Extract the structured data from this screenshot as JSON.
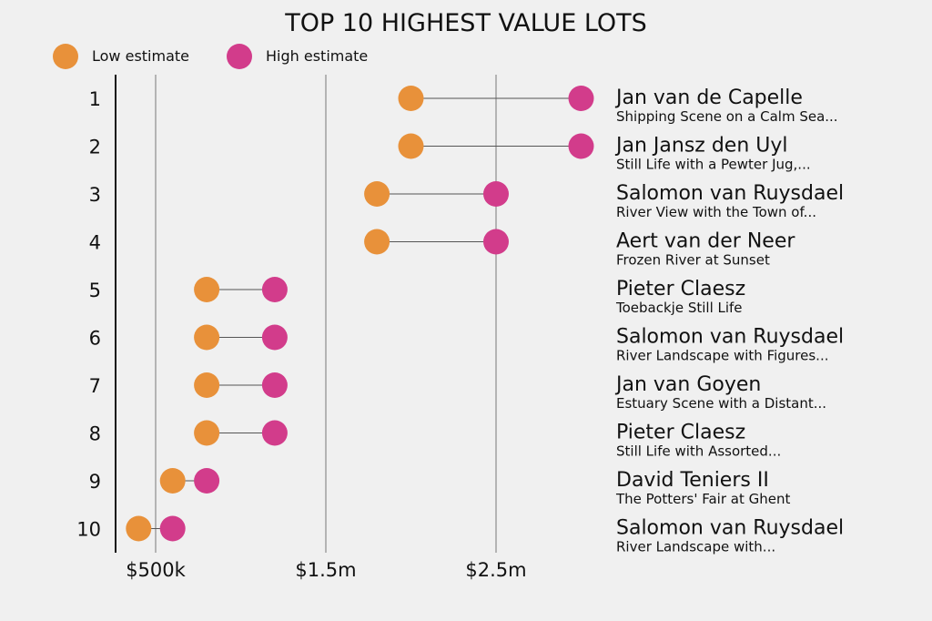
{
  "chart_data": {
    "type": "dumbbell",
    "title": "TOP 10 HIGHEST VALUE LOTS",
    "legend": [
      {
        "name": "Low estimate",
        "color": "#e8913a"
      },
      {
        "name": "High estimate",
        "color": "#d23c8b"
      }
    ],
    "x_ticks": [
      {
        "value": 500000,
        "label": "$500k"
      },
      {
        "value": 1500000,
        "label": "$1.5m"
      },
      {
        "value": 2500000,
        "label": "$2.5m"
      }
    ],
    "xlim": [
      270000,
      3100000
    ],
    "grid": "vertical",
    "rows": [
      {
        "rank": "1",
        "artist": "Jan van de Capelle",
        "title": "Shipping Scene on a Calm Sea...",
        "low": 2000000,
        "high": 3000000
      },
      {
        "rank": "2",
        "artist": "Jan Jansz den Uyl",
        "title": "Still Life with a Pewter Jug,...",
        "low": 2000000,
        "high": 3000000
      },
      {
        "rank": "3",
        "artist": "Salomon van Ruysdael",
        "title": "River View with the Town of...",
        "low": 1800000,
        "high": 2500000
      },
      {
        "rank": "4",
        "artist": "Aert van der Neer",
        "title": "Frozen River at Sunset",
        "low": 1800000,
        "high": 2500000
      },
      {
        "rank": "5",
        "artist": "Pieter Claesz",
        "title": "Toebackje Still Life",
        "low": 800000,
        "high": 1200000
      },
      {
        "rank": "6",
        "artist": "Salomon van Ruysdael",
        "title": "River Landscape with Figures...",
        "low": 800000,
        "high": 1200000
      },
      {
        "rank": "7",
        "artist": "Jan van Goyen",
        "title": "Estuary Scene with a Distant...",
        "low": 800000,
        "high": 1200000
      },
      {
        "rank": "8",
        "artist": "Pieter Claesz",
        "title": "Still Life with Assorted...",
        "low": 800000,
        "high": 1200000
      },
      {
        "rank": "9",
        "artist": "David Teniers II",
        "title": "The Potters' Fair at Ghent",
        "low": 600000,
        "high": 800000
      },
      {
        "rank": "10",
        "artist": "Salomon van Ruysdael",
        "title": "River Landscape with...",
        "low": 400000,
        "high": 600000
      }
    ]
  }
}
